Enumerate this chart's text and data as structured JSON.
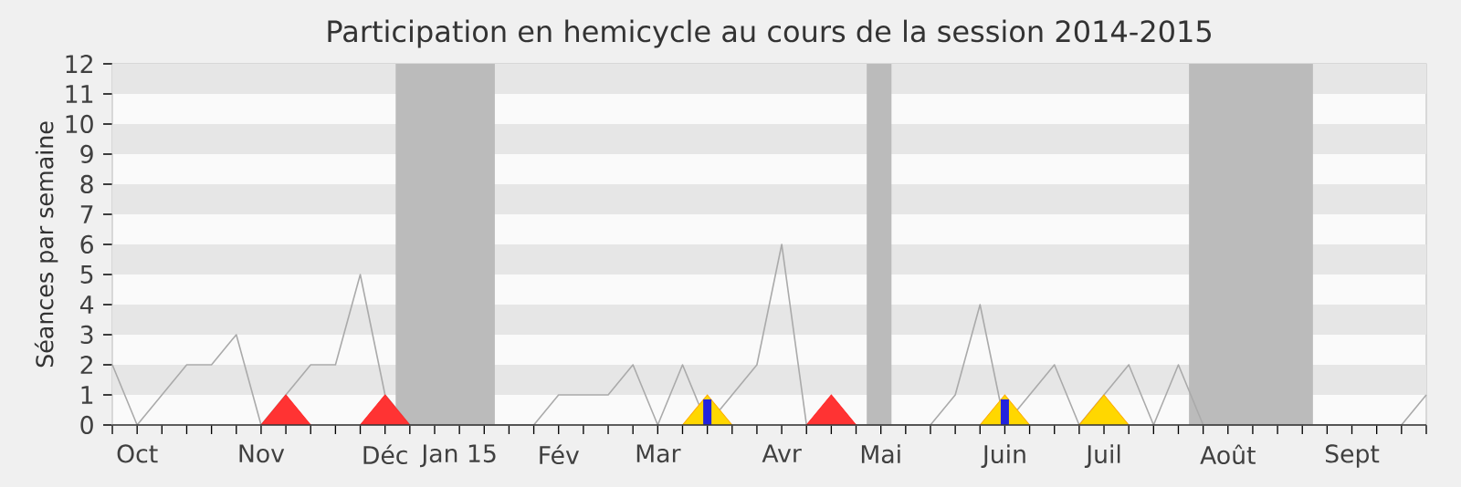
{
  "chart_data": {
    "type": "line",
    "title": "Participation en hemicycle au cours de la session 2014-2015",
    "ylabel": "Séances par semaine",
    "x": [
      "2014-09-28",
      "2014-10-05",
      "2014-10-12",
      "2014-10-19",
      "2014-10-26",
      "2014-11-02",
      "2014-11-09",
      "2014-11-16",
      "2014-11-23",
      "2014-11-30",
      "2014-12-07",
      "2014-12-14",
      "2014-12-21",
      "2014-12-28",
      "2015-01-04",
      "2015-01-11",
      "2015-01-18",
      "2015-01-25",
      "2015-02-01",
      "2015-02-08",
      "2015-02-15",
      "2015-02-22",
      "2015-03-01",
      "2015-03-08",
      "2015-03-15",
      "2015-03-22",
      "2015-03-29",
      "2015-04-05",
      "2015-04-12",
      "2015-04-19",
      "2015-04-26",
      "2015-05-03",
      "2015-05-10",
      "2015-05-17",
      "2015-05-24",
      "2015-05-31",
      "2015-06-07",
      "2015-06-14",
      "2015-06-21",
      "2015-06-28",
      "2015-07-05",
      "2015-07-12",
      "2015-07-19",
      "2015-07-26",
      "2015-08-02",
      "2015-08-09",
      "2015-08-16",
      "2015-08-23",
      "2015-08-30",
      "2015-09-06",
      "2015-09-13",
      "2015-09-20",
      "2015-09-27",
      "2015-10-04"
    ],
    "series": [
      {
        "color": "#aaaaaa",
        "values": [
          2,
          0,
          1,
          2,
          2,
          3,
          0,
          1,
          2,
          2,
          5,
          1,
          0,
          0,
          0,
          0,
          0,
          0,
          1,
          1,
          1,
          2,
          0,
          2,
          0,
          1,
          2,
          6,
          0,
          0,
          0,
          0,
          0,
          0,
          1,
          4,
          0,
          1,
          2,
          0,
          1,
          2,
          0,
          2,
          0,
          0,
          0,
          0,
          0,
          0,
          0,
          0,
          0,
          1
        ]
      },
      {
        "type": "area",
        "color": "#ff3333",
        "x": [
          "2014-11-09",
          "2014-11-16",
          "2014-11-23",
          "2014-11-30",
          "2014-12-07",
          "2014-12-14",
          "2014-12-21",
          "2015-02-15",
          "2015-04-12",
          "2015-04-19",
          "2015-04-26"
        ],
        "values": [
          0,
          1,
          0,
          null,
          0,
          1,
          0,
          null,
          0,
          1,
          0
        ]
      },
      {
        "type": "area",
        "color": "#ffd700",
        "x": [
          "2015-03-08",
          "2015-03-15",
          "2015-03-22",
          "2015-04-26",
          "2015-05-31",
          "2015-06-07",
          "2015-06-14",
          "2015-06-21",
          "2015-06-28",
          "2015-07-05",
          "2015-07-12"
        ],
        "values": [
          0,
          1,
          0,
          null,
          0,
          1,
          0,
          null,
          0,
          1,
          0
        ]
      },
      {
        "type": "bar",
        "color": "#2222dd",
        "x": [
          "2015-03-15",
          "2015-06-07"
        ],
        "values": [
          0.85,
          0.85
        ]
      }
    ],
    "bands": [
      {
        "axis": "x",
        "from": "2014-12-17",
        "to": "2015-01-14",
        "color": "#bbbbbb"
      },
      {
        "axis": "x",
        "from": "2015-04-29",
        "to": "2015-05-06",
        "color": "#bbbbbb"
      },
      {
        "axis": "x",
        "from": "2015-07-29",
        "to": "2015-09-02",
        "color": "#bbbbbb"
      }
    ],
    "xlim": [
      "2014-09-28",
      "2015-10-04"
    ],
    "ylim": [
      0,
      12
    ],
    "xticks": [
      {
        "value": "2014-09-28",
        "label": null
      },
      {
        "value": "2014-10-05",
        "label": "Oct"
      },
      {
        "value": "2014-10-12",
        "label": null
      },
      {
        "value": "2014-10-19",
        "label": null
      },
      {
        "value": "2014-10-26",
        "label": null
      },
      {
        "value": "2014-11-02",
        "label": null
      },
      {
        "value": "2014-11-09",
        "label": "Nov"
      },
      {
        "value": "2014-11-16",
        "label": null
      },
      {
        "value": "2014-11-23",
        "label": null
      },
      {
        "value": "2014-11-30",
        "label": null
      },
      {
        "value": "2014-12-07",
        "label": null
      },
      {
        "value": "2014-12-14",
        "label": "Déc"
      },
      {
        "value": "2014-12-21",
        "label": null
      },
      {
        "value": "2014-12-28",
        "label": null
      },
      {
        "value": "2015-01-04",
        "label": "Jan 15"
      },
      {
        "value": "2015-01-11",
        "label": null
      },
      {
        "value": "2015-01-18",
        "label": null
      },
      {
        "value": "2015-01-25",
        "label": null
      },
      {
        "value": "2015-02-01",
        "label": "Fév"
      },
      {
        "value": "2015-02-08",
        "label": null
      },
      {
        "value": "2015-02-15",
        "label": null
      },
      {
        "value": "2015-02-22",
        "label": null
      },
      {
        "value": "2015-03-01",
        "label": "Mar"
      },
      {
        "value": "2015-03-08",
        "label": null
      },
      {
        "value": "2015-03-15",
        "label": null
      },
      {
        "value": "2015-03-22",
        "label": null
      },
      {
        "value": "2015-03-29",
        "label": null
      },
      {
        "value": "2015-04-05",
        "label": "Avr"
      },
      {
        "value": "2015-04-12",
        "label": null
      },
      {
        "value": "2015-04-19",
        "label": null
      },
      {
        "value": "2015-04-26",
        "label": null
      },
      {
        "value": "2015-05-03",
        "label": "Mai"
      },
      {
        "value": "2015-05-10",
        "label": null
      },
      {
        "value": "2015-05-17",
        "label": null
      },
      {
        "value": "2015-05-24",
        "label": null
      },
      {
        "value": "2015-05-31",
        "label": null
      },
      {
        "value": "2015-06-07",
        "label": "Juin"
      },
      {
        "value": "2015-06-14",
        "label": null
      },
      {
        "value": "2015-06-21",
        "label": null
      },
      {
        "value": "2015-06-28",
        "label": null
      },
      {
        "value": "2015-07-05",
        "label": "Juil"
      },
      {
        "value": "2015-07-12",
        "label": null
      },
      {
        "value": "2015-07-19",
        "label": null
      },
      {
        "value": "2015-07-26",
        "label": null
      },
      {
        "value": "2015-08-02",
        "label": null
      },
      {
        "value": "2015-08-09",
        "label": "Août"
      },
      {
        "value": "2015-08-16",
        "label": null
      },
      {
        "value": "2015-08-23",
        "label": null
      },
      {
        "value": "2015-08-30",
        "label": null
      },
      {
        "value": "2015-09-06",
        "label": null
      },
      {
        "value": "2015-09-13",
        "label": "Sept"
      },
      {
        "value": "2015-09-20",
        "label": null
      },
      {
        "value": "2015-09-27",
        "label": null
      },
      {
        "value": "2015-10-04",
        "label": null
      }
    ],
    "yticks": [
      0,
      1,
      2,
      3,
      4,
      5,
      6,
      7,
      8,
      9,
      10,
      11,
      12
    ]
  }
}
